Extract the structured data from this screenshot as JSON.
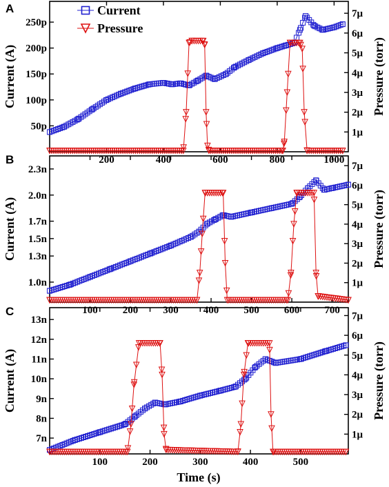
{
  "figure_caption_legend": [
    {
      "name": "Current",
      "color": "#2020d0",
      "marker": "square"
    },
    {
      "name": "Pressure",
      "color": "#dd1010",
      "marker": "triangle-down"
    }
  ],
  "chart_data": [
    {
      "panel": "A",
      "type": "scatter",
      "xlabel": "",
      "ylabel": "Current (A)",
      "y2label": "Pressure (torr)",
      "xlim": [
        0,
        1050
      ],
      "ylim": [
        0,
        290
      ],
      "y2lim": [
        0,
        7.6
      ],
      "xticks": [
        200,
        400,
        600,
        800,
        1000
      ],
      "xtick_labels": [
        "200",
        "400",
        "600",
        "800",
        "1000"
      ],
      "yticks": [
        50,
        100,
        150,
        200,
        250
      ],
      "ytick_labels": [
        "50p",
        "100p",
        "150p",
        "200p",
        "250p"
      ],
      "y2ticks": [
        1,
        2,
        3,
        4,
        5,
        6,
        7
      ],
      "y2tick_labels": [
        "1μ",
        "2μ",
        "3μ",
        "4μ",
        "5μ",
        "6μ",
        "7μ"
      ],
      "series": [
        {
          "name": "Current",
          "unit": "pA",
          "x": [
            0,
            50,
            100,
            150,
            200,
            250,
            300,
            350,
            400,
            430,
            460,
            490,
            520,
            550,
            580,
            620,
            650,
            700,
            750,
            800,
            830,
            860,
            880,
            900,
            930,
            960,
            1000,
            1030
          ],
          "y": [
            38,
            48,
            63,
            82,
            100,
            112,
            122,
            130,
            133,
            130,
            132,
            128,
            137,
            147,
            140,
            150,
            163,
            177,
            190,
            200,
            205,
            210,
            235,
            262,
            243,
            235,
            240,
            246
          ]
        },
        {
          "name": "Pressure",
          "unit": "μtorr",
          "x": [
            0,
            470,
            480,
            490,
            500,
            540,
            545,
            550,
            555,
            560,
            820,
            825,
            835,
            845,
            880,
            888,
            895,
            905,
            1030
          ],
          "y": [
            0.05,
            0.05,
            2.0,
            5.5,
            5.6,
            5.6,
            5.4,
            2.0,
            0.3,
            0.05,
            0.05,
            0.5,
            3.0,
            5.5,
            5.5,
            5.2,
            2.0,
            0.05,
            0.05
          ]
        }
      ]
    },
    {
      "panel": "B",
      "type": "scatter",
      "xlabel": "",
      "ylabel": "Current (A)",
      "y2label": "Pressure (torr)",
      "xlim": [
        0,
        740
      ],
      "ylim": [
        0.77,
        2.45
      ],
      "y2lim": [
        0,
        7.5
      ],
      "xticks": [
        100,
        200,
        300,
        400,
        500,
        600,
        700
      ],
      "xtick_labels": [
        "100",
        "200",
        "300",
        "400",
        "500",
        "600",
        "700"
      ],
      "yticks": [
        1.0,
        1.3,
        1.5,
        1.7,
        2.0,
        2.3
      ],
      "ytick_labels": [
        "1.0n",
        "1.3n",
        "1.5n",
        "1.7n",
        "2.0n",
        "2.3n"
      ],
      "y2ticks": [
        1,
        2,
        3,
        4,
        5,
        6,
        7
      ],
      "y2tick_labels": [
        "1μ",
        "2μ",
        "3μ",
        "4μ",
        "5μ",
        "6μ",
        "7μ"
      ],
      "series": [
        {
          "name": "Current",
          "unit": "nA",
          "x": [
            0,
            50,
            100,
            150,
            200,
            250,
            300,
            350,
            370,
            390,
            410,
            430,
            450,
            500,
            550,
            600,
            620,
            640,
            660,
            680,
            700,
            740
          ],
          "y": [
            0.9,
            0.97,
            1.06,
            1.15,
            1.24,
            1.33,
            1.42,
            1.52,
            1.58,
            1.67,
            1.72,
            1.77,
            1.75,
            1.8,
            1.85,
            1.9,
            1.98,
            2.08,
            2.17,
            2.06,
            2.08,
            2.12
          ]
        },
        {
          "name": "Pressure",
          "unit": "μtorr",
          "x": [
            0,
            365,
            372,
            378,
            385,
            430,
            435,
            440,
            590,
            598,
            605,
            612,
            655,
            660,
            665,
            740
          ],
          "y": [
            0.1,
            0.1,
            1.5,
            3.5,
            5.6,
            5.6,
            2.0,
            0.1,
            0.1,
            1.5,
            4.0,
            5.6,
            5.6,
            1.5,
            0.3,
            0.1
          ]
        }
      ]
    },
    {
      "panel": "C",
      "type": "scatter",
      "xlabel": "Time (s)",
      "ylabel": "Current (A)",
      "y2label": "Pressure (torr)",
      "xlim": [
        0,
        595
      ],
      "ylim": [
        6.2,
        13.6
      ],
      "y2lim": [
        0,
        7.4
      ],
      "xticks": [
        100,
        200,
        300,
        400,
        500
      ],
      "xtick_labels": [
        "100",
        "200",
        "300",
        "400",
        "500"
      ],
      "yticks": [
        7,
        8,
        9,
        10,
        11,
        12,
        13
      ],
      "ytick_labels": [
        "7n",
        "8n",
        "9n",
        "10n",
        "11n",
        "12n",
        "13n"
      ],
      "y2ticks": [
        1,
        2,
        3,
        4,
        5,
        6,
        7
      ],
      "y2tick_labels": [
        "1μ",
        "2μ",
        "3μ",
        "4μ",
        "5μ",
        "6μ",
        "7μ"
      ],
      "series": [
        {
          "name": "Current",
          "unit": "nA",
          "x": [
            0,
            50,
            100,
            150,
            170,
            190,
            210,
            230,
            260,
            300,
            340,
            370,
            390,
            410,
            430,
            450,
            500,
            550,
            590
          ],
          "y": [
            6.4,
            6.9,
            7.3,
            7.7,
            8.1,
            8.5,
            8.8,
            8.7,
            8.85,
            9.15,
            9.4,
            9.6,
            10.0,
            10.6,
            11.0,
            10.8,
            11.0,
            11.4,
            11.7
          ]
        },
        {
          "name": "Pressure",
          "unit": "μtorr",
          "x": [
            0,
            155,
            162,
            168,
            178,
            220,
            224,
            228,
            232,
            375,
            381,
            387,
            395,
            438,
            441,
            445,
            590
          ],
          "y": [
            0.1,
            0.1,
            1.5,
            3.5,
            5.6,
            5.6,
            4.0,
            1.0,
            0.2,
            0.1,
            1.5,
            4.0,
            5.6,
            5.6,
            2.0,
            0.1,
            0.1
          ]
        }
      ]
    }
  ]
}
